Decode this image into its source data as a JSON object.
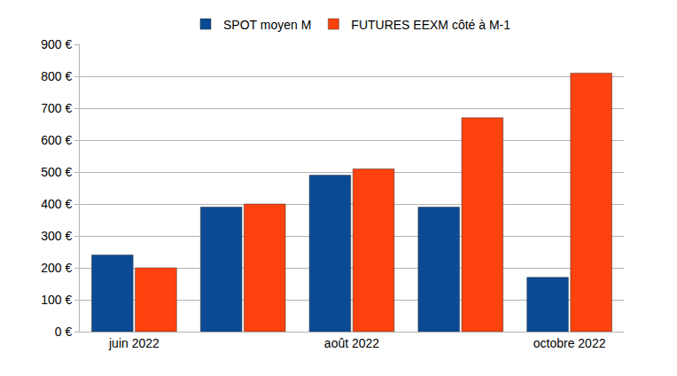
{
  "chart_data": {
    "type": "bar",
    "categories": [
      "juin 2022",
      null,
      "août 2022",
      null,
      "octobre 2022"
    ],
    "series": [
      {
        "name": "SPOT moyen M",
        "color": "#0b4a94",
        "values": [
          240,
          390,
          490,
          390,
          170
        ]
      },
      {
        "name": "FUTURES EEXM côté à M-1",
        "color": "#ff420e",
        "values": [
          200,
          400,
          510,
          670,
          810
        ]
      }
    ],
    "ylim": [
      0,
      900
    ],
    "yticks": [
      {
        "value": 0,
        "label": "0 €"
      },
      {
        "value": 100,
        "label": "100 €"
      },
      {
        "value": 200,
        "label": "200 €"
      },
      {
        "value": 300,
        "label": "300 €"
      },
      {
        "value": 400,
        "label": "400 €"
      },
      {
        "value": 500,
        "label": "500 €"
      },
      {
        "value": 600,
        "label": "600 €"
      },
      {
        "value": 700,
        "label": "700 €"
      },
      {
        "value": 800,
        "label": "800 €"
      },
      {
        "value": 900,
        "label": "900 €"
      }
    ],
    "grid": true,
    "legend": "top"
  }
}
